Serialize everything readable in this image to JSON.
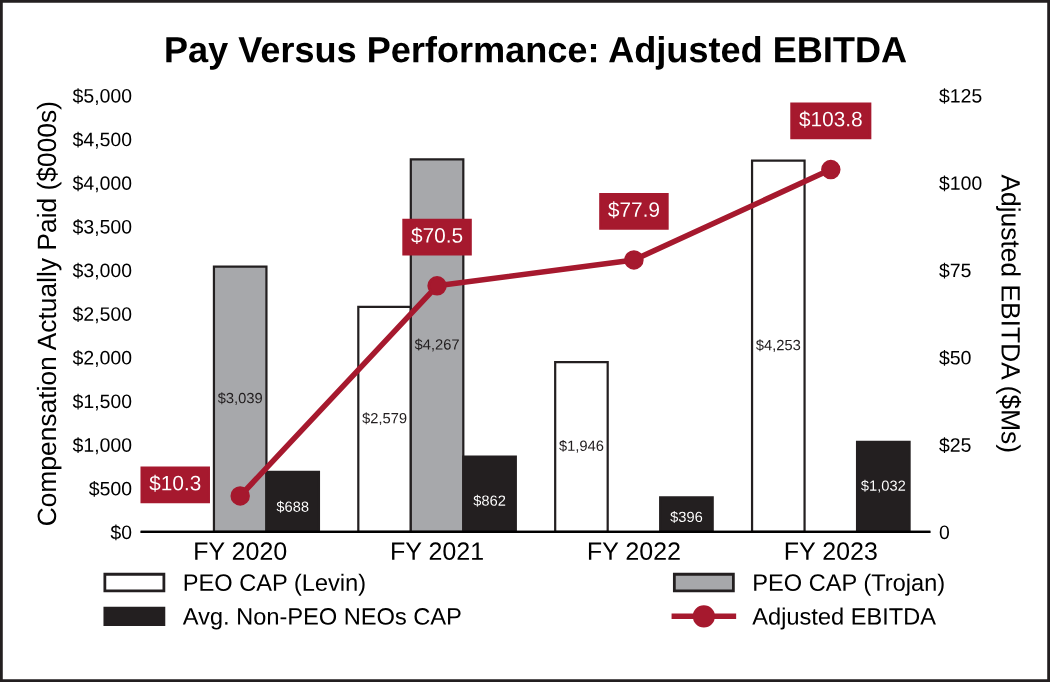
{
  "chart_data": {
    "type": "bar",
    "title": "Pay Versus Performance: Adjusted EBITDA",
    "categories": [
      "FY 2020",
      "FY 2021",
      "FY 2022",
      "FY 2023"
    ],
    "ylabel": "Compensation Actually Paid ($000s)",
    "y2label": "Adjusted EBITDA ($Ms)",
    "ylim": [
      0,
      5000
    ],
    "yticks": [
      {
        "value": 0,
        "label": "$0"
      },
      {
        "value": 500,
        "label": "$500"
      },
      {
        "value": 1000,
        "label": "$1,000"
      },
      {
        "value": 1500,
        "label": "$1,500"
      },
      {
        "value": 2000,
        "label": "$2,000"
      },
      {
        "value": 2500,
        "label": "$2,500"
      },
      {
        "value": 3000,
        "label": "$3,000"
      },
      {
        "value": 3500,
        "label": "$3,500"
      },
      {
        "value": 4000,
        "label": "$4,000"
      },
      {
        "value": 4500,
        "label": "$4,500"
      },
      {
        "value": 5000,
        "label": "$5,000"
      }
    ],
    "y2lim": [
      0,
      125
    ],
    "y2ticks": [
      {
        "value": 0,
        "label": "0"
      },
      {
        "value": 25,
        "label": "$25"
      },
      {
        "value": 50,
        "label": "$50"
      },
      {
        "value": 75,
        "label": "$75"
      },
      {
        "value": 100,
        "label": "$100"
      },
      {
        "value": 125,
        "label": "$125"
      }
    ],
    "series": [
      {
        "name": "PEO CAP (Levin)",
        "color": "#ffffff",
        "values": [
          null,
          2579,
          1946,
          4253
        ],
        "value_labels": [
          null,
          "$2,579",
          "$1,946",
          "$4,253"
        ]
      },
      {
        "name": "PEO CAP (Trojan)",
        "color": "#a7a8ab",
        "values": [
          3039,
          4267,
          null,
          null
        ],
        "value_labels": [
          "$3,039",
          "$4,267",
          null,
          null
        ]
      },
      {
        "name": "Avg. Non-PEO NEOs CAP",
        "color": "#231f20",
        "values": [
          688,
          862,
          396,
          1032
        ],
        "value_labels": [
          "$688",
          "$862",
          "$396",
          "$1,032"
        ]
      },
      {
        "name": "Adjusted EBITDA",
        "type": "line",
        "axis": "y2",
        "color": "#a6192e",
        "marker": "circle",
        "values": [
          10.3,
          70.5,
          77.9,
          103.8
        ],
        "value_labels": [
          "$10.3",
          "$70.5",
          "$77.9",
          "$103.8"
        ]
      }
    ],
    "grid": false,
    "legend": "bottom"
  }
}
